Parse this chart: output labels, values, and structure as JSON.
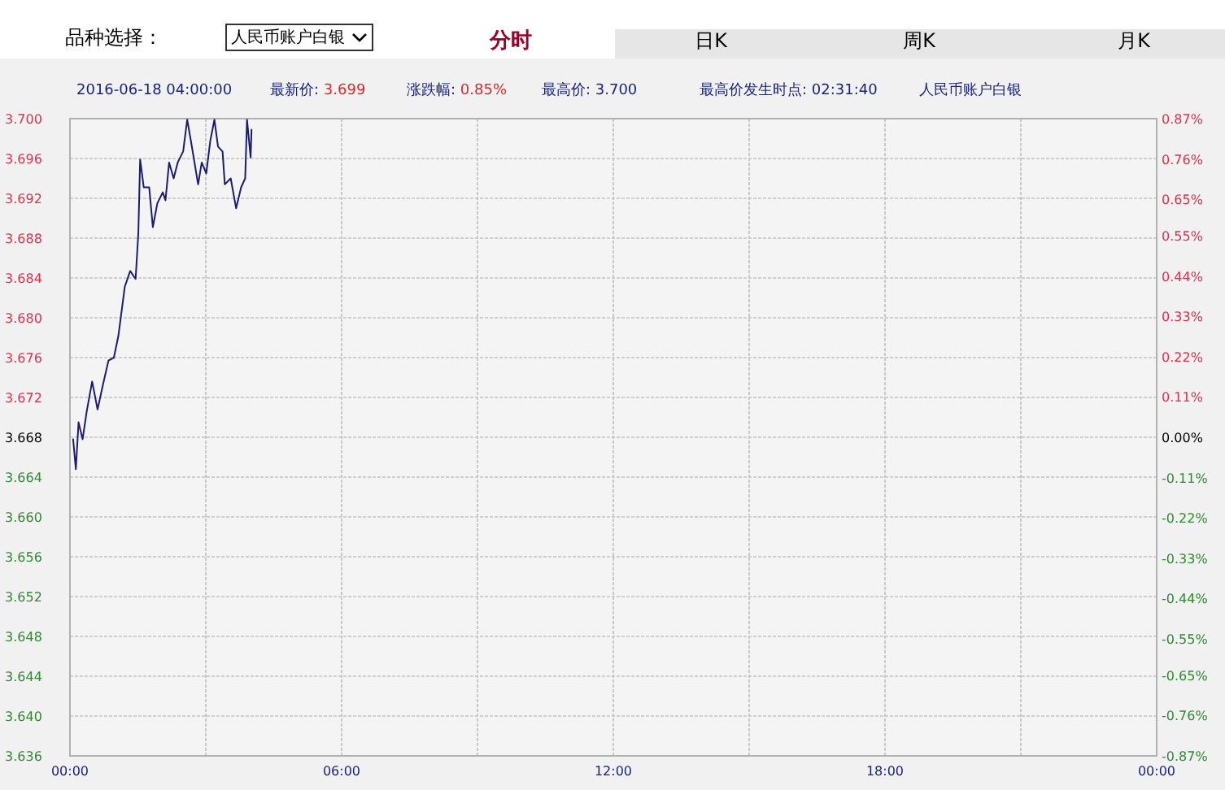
{
  "chart_data": {
    "type": "line",
    "annotations": [
      "品种选择：",
      "人民币账户白银",
      "分时",
      "日K",
      "周K",
      "月K",
      "2016-06-18 04:00:00",
      "最新价: 3.699",
      "涨跌幅: 0.85%",
      "最高价: 3.700",
      "最高价发生时点:  02:31:40",
      "人民币账户白银"
    ],
    "x": [
      0.07,
      0.13,
      0.19,
      0.28,
      0.37,
      0.49,
      0.61,
      0.73,
      0.85,
      0.97,
      1.07,
      1.21,
      1.33,
      1.45,
      1.51,
      1.55,
      1.63,
      1.75,
      1.83,
      1.93,
      2.05,
      2.11,
      2.19,
      2.29,
      2.38,
      2.5,
      2.59,
      2.67,
      2.74,
      2.83,
      2.91,
      3.01,
      3.1,
      3.19,
      3.27,
      3.37,
      3.42,
      3.55,
      3.67,
      3.78,
      3.87,
      3.91,
      3.99,
      4.01
    ],
    "series": [
      {
        "color": "#1c1c72",
        "values": [
          3.6678,
          3.6648,
          3.6695,
          3.6678,
          3.6706,
          3.6736,
          3.6708,
          3.6733,
          3.6757,
          3.676,
          3.6782,
          3.6831,
          3.6847,
          3.6839,
          3.6885,
          3.6959,
          3.6931,
          3.6931,
          3.6891,
          3.6915,
          3.6926,
          3.6918,
          3.6956,
          3.694,
          3.6956,
          3.6967,
          3.6999,
          3.6978,
          3.6959,
          3.6934,
          3.6956,
          3.6945,
          3.6978,
          3.6999,
          3.6972,
          3.6967,
          3.6934,
          3.694,
          3.691,
          3.6931,
          3.694,
          3.6999,
          3.6961,
          3.6989
        ]
      }
    ],
    "xlim": [
      0,
      24
    ],
    "xticks": [
      {
        "value": 0,
        "label": "00:00"
      },
      {
        "value": 3,
        "label": null
      },
      {
        "value": 6,
        "label": "06:00"
      },
      {
        "value": 9,
        "label": null
      },
      {
        "value": 12,
        "label": "12:00"
      },
      {
        "value": 15,
        "label": null
      },
      {
        "value": 18,
        "label": "18:00"
      },
      {
        "value": 21,
        "label": null
      },
      {
        "value": 24,
        "label": "00:00"
      }
    ],
    "ylim": [
      3.636,
      3.7
    ],
    "yticks": [
      3.636,
      {
        "value": 3.64,
        "label": "3.640"
      },
      3.644,
      3.648,
      3.652,
      3.656,
      {
        "value": 3.66,
        "label": "3.660"
      },
      3.664,
      3.668,
      3.672,
      3.676,
      {
        "value": 3.68,
        "label": "3.680"
      },
      3.684,
      3.688,
      3.692,
      3.696,
      {
        "value": 3.7,
        "label": "3.700"
      }
    ],
    "y2lim": [
      -0.87,
      0.87
    ],
    "y2ticks": [
      {
        "value": -0.87,
        "label": "-0.87%"
      },
      {
        "value": -0.76,
        "label": "-0.76%"
      },
      {
        "value": -0.65,
        "label": "-0.65%"
      },
      {
        "value": -0.55,
        "label": "-0.55%"
      },
      {
        "value": -0.44,
        "label": "-0.44%"
      },
      {
        "value": -0.33,
        "label": "-0.33%"
      },
      {
        "value": -0.22,
        "label": "-0.22%"
      },
      {
        "value": -0.11,
        "label": "-0.11%"
      },
      {
        "value": 0,
        "label": "0.00%"
      },
      {
        "value": 0.11,
        "label": "0.11%"
      },
      {
        "value": 0.22,
        "label": "0.22%"
      },
      {
        "value": 0.33,
        "label": "0.33%"
      },
      {
        "value": 0.44,
        "label": "0.44%"
      },
      {
        "value": 0.55,
        "label": "0.55%"
      },
      {
        "value": 0.65,
        "label": "0.65%"
      },
      {
        "value": 0.76,
        "label": "0.76%"
      },
      {
        "value": 0.87,
        "label": "0.87%"
      }
    ],
    "grid": true,
    "marker": "none",
    "line_style": "solid"
  }
}
